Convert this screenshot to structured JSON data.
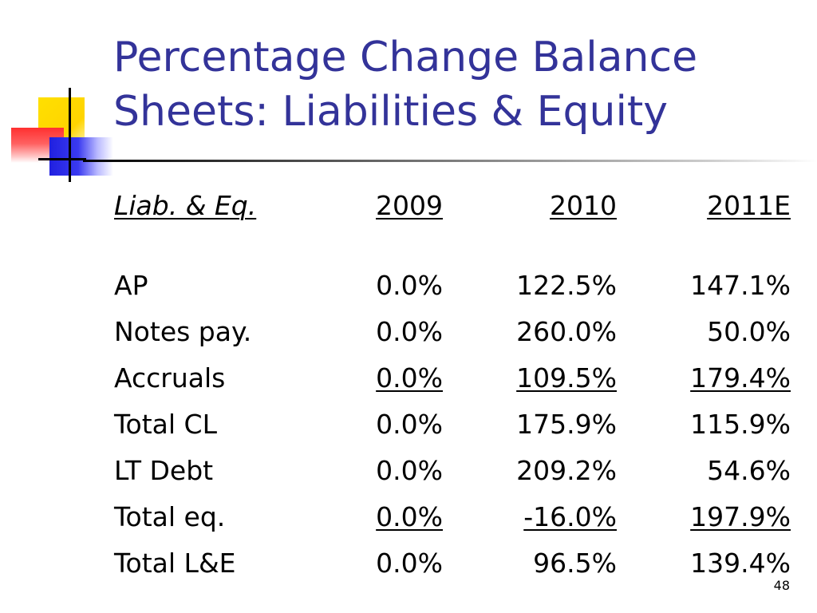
{
  "slide": {
    "title_line1": "Percentage Change Balance",
    "title_line2": "Sheets: Liabilities & Equity",
    "page_number": "48"
  },
  "table": {
    "headers": [
      "Liab. & Eq.",
      "2009",
      "2010",
      "2011E"
    ],
    "rows": [
      [
        "AP",
        "0.0%",
        "122.5%",
        "147.1%"
      ],
      [
        "Notes pay.",
        "0.0%",
        "260.0%",
        "50.0%"
      ],
      [
        "Accruals",
        "0.0%",
        "109.5%",
        "179.4%"
      ],
      [
        "Total CL",
        "0.0%",
        "175.9%",
        "115.9%"
      ],
      [
        "LT Debt",
        "0.0%",
        "209.2%",
        "54.6%"
      ],
      [
        "Total eq.",
        "0.0%",
        "-16.0%",
        "197.9%"
      ],
      [
        "Total L&E",
        "0.0%",
        "96.5%",
        "139.4%"
      ]
    ]
  },
  "colors": {
    "title": "#333399",
    "background": "#ffffff",
    "text": "#000000"
  }
}
